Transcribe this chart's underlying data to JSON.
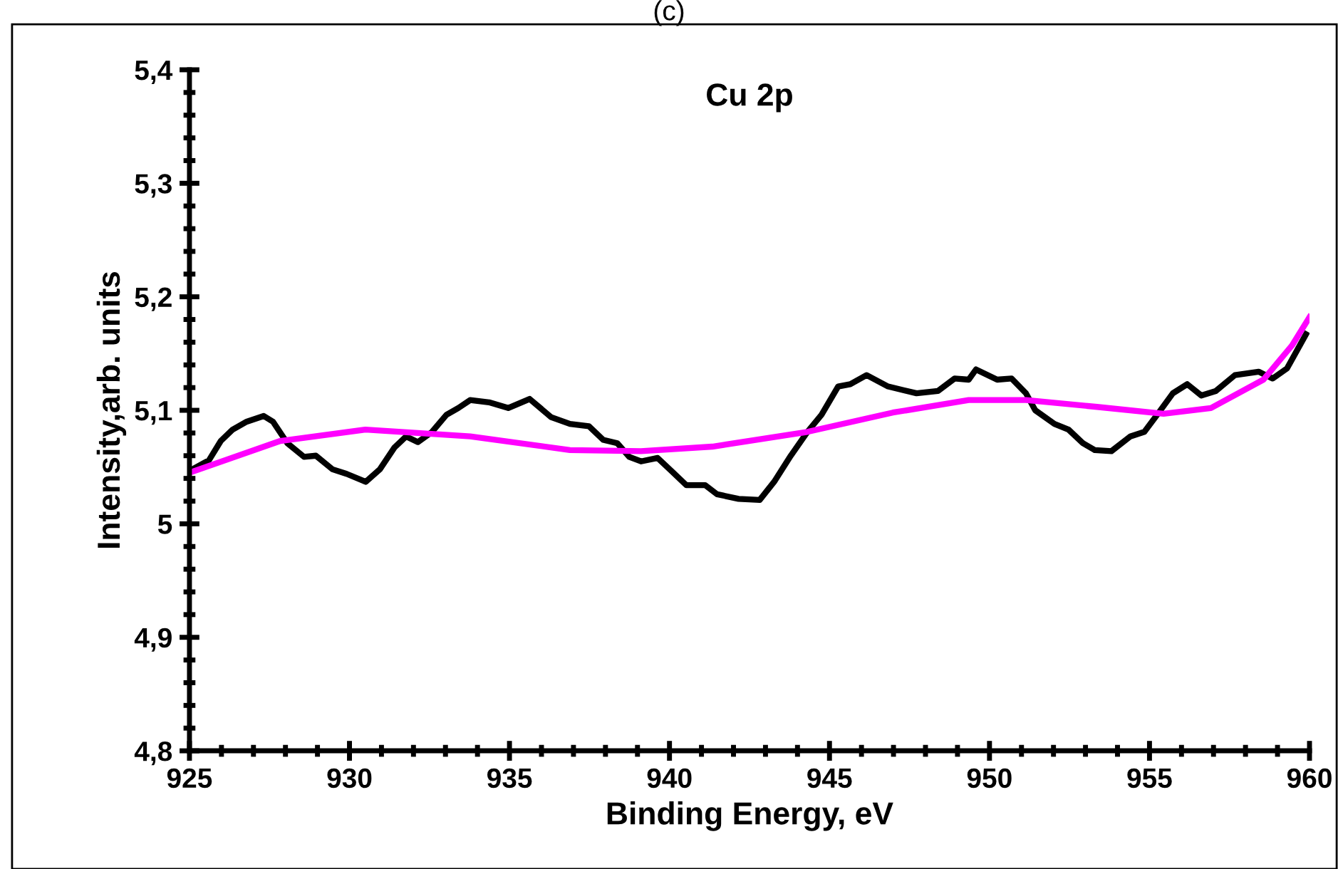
{
  "chart_data": {
    "type": "line",
    "title": "Cu 2p",
    "xlabel": "Binding Energy, eV",
    "ylabel": "Intensity,arb. units",
    "annotations": [
      "(c)"
    ],
    "xlim": [
      925,
      960
    ],
    "xticks": [
      925,
      930,
      935,
      940,
      945,
      950,
      955,
      960
    ],
    "ylim": [
      4.8,
      5.4
    ],
    "yticks": [
      {
        "value": 4.8,
        "label": "4,8"
      },
      {
        "value": 4.9,
        "label": "4,9"
      },
      5,
      {
        "value": 5.1,
        "label": "5,1"
      },
      {
        "value": 5.2,
        "label": "5,2"
      },
      {
        "value": 5.3,
        "label": "5,3"
      },
      {
        "value": 5.4,
        "label": "5,4"
      }
    ],
    "grid": false,
    "legend": false,
    "marker": "none",
    "line_style": "solid",
    "series": [
      {
        "color": "#000000",
        "x": [
          925.09,
          925.61,
          925.98,
          926.35,
          926.79,
          927.32,
          927.61,
          928.06,
          928.58,
          928.95,
          929.47,
          929.91,
          930.51,
          930.95,
          931.4,
          931.77,
          932.14,
          932.58,
          933.03,
          933.4,
          933.77,
          934.36,
          934.96,
          935.63,
          936.3,
          936.89,
          937.48,
          937.93,
          938.37,
          938.74,
          939.11,
          939.63,
          940.08,
          940.53,
          941.12,
          941.49,
          942.16,
          942.82,
          943.27,
          943.79,
          944.31,
          944.75,
          945.27,
          945.65,
          946.16,
          946.83,
          947.72,
          948.39,
          948.91,
          949.35,
          949.58,
          950.24,
          950.69,
          951.14,
          951.43,
          952.03,
          952.47,
          952.92,
          953.29,
          953.81,
          954.4,
          954.84,
          955.29,
          955.73,
          956.18,
          956.62,
          957.07,
          957.67,
          958.41,
          958.85,
          959.3,
          959.89
        ],
        "values": [
          5.048,
          5.056,
          5.073,
          5.083,
          5.09,
          5.095,
          5.09,
          5.071,
          5.059,
          5.06,
          5.048,
          5.044,
          5.037,
          5.048,
          5.067,
          5.077,
          5.072,
          5.081,
          5.096,
          5.102,
          5.109,
          5.107,
          5.102,
          5.11,
          5.094,
          5.088,
          5.086,
          5.074,
          5.071,
          5.059,
          5.055,
          5.058,
          5.046,
          5.034,
          5.034,
          5.026,
          5.022,
          5.021,
          5.037,
          5.06,
          5.081,
          5.096,
          5.121,
          5.123,
          5.131,
          5.121,
          5.115,
          5.117,
          5.128,
          5.127,
          5.136,
          5.127,
          5.128,
          5.115,
          5.1,
          5.088,
          5.083,
          5.071,
          5.065,
          5.064,
          5.077,
          5.081,
          5.098,
          5.115,
          5.123,
          5.113,
          5.117,
          5.131,
          5.134,
          5.128,
          5.137,
          5.167
        ]
      },
      {
        "color": "#ff00ff",
        "x": [
          925,
          927.84,
          930.5,
          933.77,
          936.89,
          939.11,
          941.34,
          944.31,
          946.98,
          949.35,
          951.14,
          953.36,
          955.44,
          956.92,
          958.56,
          959.45,
          960
        ],
        "values": [
          5.045,
          5.073,
          5.083,
          5.077,
          5.065,
          5.064,
          5.068,
          5.081,
          5.098,
          5.109,
          5.109,
          5.103,
          5.097,
          5.102,
          5.127,
          5.157,
          5.182
        ]
      }
    ]
  }
}
